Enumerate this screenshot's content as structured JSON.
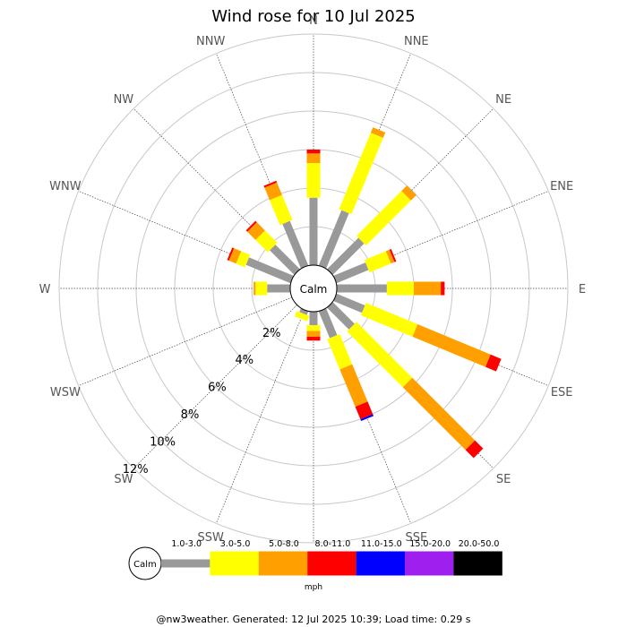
{
  "chart_data": {
    "type": "wind-rose",
    "title": "Wind rose for 10 Jul 2025",
    "unit": "mph",
    "calm_label": "Calm",
    "ring_labels": [
      "2%",
      "4%",
      "6%",
      "8%",
      "10%",
      "12%"
    ],
    "ring_values": [
      2,
      4,
      6,
      8,
      10,
      12
    ],
    "directions": [
      "N",
      "NNE",
      "NE",
      "ENE",
      "E",
      "ESE",
      "SE",
      "SSE",
      "S",
      "SSW",
      "SW",
      "WSW",
      "W",
      "WNW",
      "NW",
      "NNW"
    ],
    "speed_bins": [
      {
        "label": "1.0-3.0",
        "color": "#999999"
      },
      {
        "label": "3.0-5.0",
        "color": "#ffff00"
      },
      {
        "label": "5.0-8.0",
        "color": "#ff9f00"
      },
      {
        "label": "8.0-11.0",
        "color": "#ff0000"
      },
      {
        "label": "11.0-15.0",
        "color": "#0000ff"
      },
      {
        "label": "15.0-20.0",
        "color": "#9f1fef"
      },
      {
        "label": "20.0-50.0",
        "color": "#000000"
      }
    ],
    "series": [
      {
        "direction": "N",
        "cumulative": [
          3.5,
          5.3,
          5.8,
          6.0
        ]
      },
      {
        "direction": "NNE",
        "cumulative": [
          3.1,
          7.4,
          7.7,
          7.7
        ]
      },
      {
        "direction": "NE",
        "cumulative": [
          2.3,
          5.6,
          6.0,
          6.0
        ]
      },
      {
        "direction": "ENE",
        "cumulative": [
          1.8,
          3.0,
          3.2,
          3.3
        ]
      },
      {
        "direction": "E",
        "cumulative": [
          2.6,
          4.0,
          5.4,
          5.6
        ]
      },
      {
        "direction": "ESE",
        "cumulative": [
          1.6,
          4.5,
          8.6,
          9.2
        ]
      },
      {
        "direction": "SE",
        "cumulative": [
          1.6,
          5.7,
          10.3,
          10.9
        ]
      },
      {
        "direction": "SSE",
        "cumulative": [
          1.5,
          3.2,
          5.3,
          6.0,
          6.1
        ]
      },
      {
        "direction": "S",
        "cumulative": [
          0.7,
          1.0,
          1.3,
          1.5
        ]
      },
      {
        "direction": "SSW",
        "cumulative": [
          0.2,
          0.5,
          0.5,
          0.5
        ]
      },
      {
        "direction": "SW",
        "cumulative": [
          0.0,
          0.0,
          0.0,
          0.0
        ]
      },
      {
        "direction": "WSW",
        "cumulative": [
          0.0,
          0.0,
          0.0,
          0.0
        ]
      },
      {
        "direction": "W",
        "cumulative": [
          1.2,
          1.8,
          1.9,
          1.9
        ]
      },
      {
        "direction": "WNW",
        "cumulative": [
          2.5,
          3.0,
          3.4,
          3.5
        ]
      },
      {
        "direction": "NW",
        "cumulative": [
          1.8,
          2.7,
          3.3,
          3.4
        ]
      },
      {
        "direction": "NNW",
        "cumulative": [
          2.5,
          3.9,
          4.6,
          4.7
        ]
      }
    ]
  },
  "footer": "@nw3weather. Generated: 12 Jul 2025 10:39; Load time: 0.29 s"
}
